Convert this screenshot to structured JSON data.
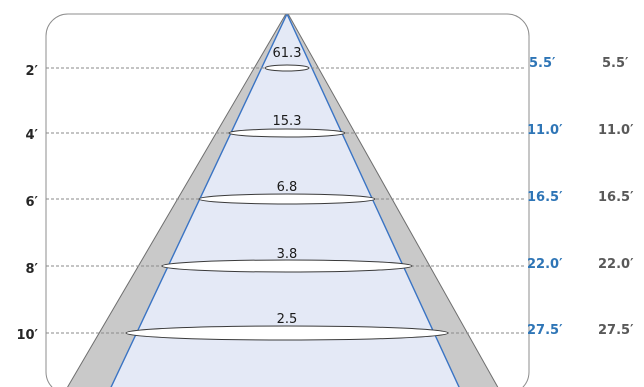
{
  "colors": {
    "frame_stroke": "#8c8c8c",
    "outer_cone_fill": "#c9c9c9",
    "inner_cone_fill": "#e4e9f6",
    "beam_edge": "#3a74c4",
    "guide_line": "#8a8a8a",
    "diameter_a": "#2e75b6",
    "diameter_b": "#595959",
    "distance_text": "#262626"
  },
  "rows": [
    {
      "distance": "2′",
      "value": "61.3",
      "diameter_a": "5.5′",
      "diameter_b": "5.5′"
    },
    {
      "distance": "4′",
      "value": "15.3",
      "diameter_a": "11.0′",
      "diameter_b": "11.0′"
    },
    {
      "distance": "6′",
      "value": "6.8",
      "diameter_a": "16.5′",
      "diameter_b": "16.5′"
    },
    {
      "distance": "8′",
      "value": "3.8",
      "diameter_a": "22.0′",
      "diameter_b": "22.0′"
    },
    {
      "distance": "10′",
      "value": "2.5",
      "diameter_a": "27.5′",
      "diameter_b": "27.5′"
    }
  ]
}
